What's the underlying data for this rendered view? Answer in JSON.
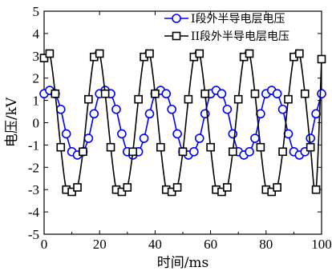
{
  "chart_data": {
    "type": "line",
    "xlabel": "时间/ms",
    "ylabel": "电压/kV",
    "xlim": [
      0,
      100
    ],
    "ylim": [
      -5,
      5
    ],
    "xticks": [
      0,
      20,
      40,
      60,
      80,
      100
    ],
    "yticks": [
      -5,
      -4,
      -3,
      -2,
      -1,
      0,
      1,
      2,
      3,
      4,
      5
    ],
    "grid": false,
    "legend_position": "top-right",
    "series": [
      {
        "name": "I段外半导电层电压",
        "color": "#0000ff",
        "marker": "circle",
        "x": [
          0,
          2,
          4,
          6,
          8,
          10,
          12,
          14,
          16,
          18,
          20,
          22,
          24,
          26,
          28,
          30,
          32,
          34,
          36,
          38,
          40,
          42,
          44,
          46,
          48,
          50,
          52,
          54,
          56,
          58,
          60,
          62,
          64,
          66,
          68,
          70,
          72,
          74,
          76,
          78,
          80,
          82,
          84,
          86,
          88,
          90,
          92,
          94,
          96,
          98,
          100
        ],
        "values": [
          1.3,
          1.45,
          1.3,
          0.6,
          -0.5,
          -1.3,
          -1.45,
          -1.3,
          -0.7,
          0.4,
          1.3,
          1.45,
          1.3,
          0.6,
          -0.5,
          -1.3,
          -1.45,
          -1.3,
          -0.7,
          0.4,
          1.3,
          1.45,
          1.3,
          0.6,
          -0.5,
          -1.3,
          -1.45,
          -1.3,
          -0.7,
          0.4,
          1.3,
          1.45,
          1.3,
          0.6,
          -0.5,
          -1.3,
          -1.45,
          -1.3,
          -0.7,
          0.4,
          1.3,
          1.45,
          1.3,
          0.6,
          -0.5,
          -1.3,
          -1.45,
          -1.3,
          -0.7,
          0.4,
          1.3
        ]
      },
      {
        "name": "II段外半导电层电压",
        "color": "#000000",
        "marker": "square",
        "x": [
          0,
          2,
          4,
          6,
          8,
          10,
          12,
          14,
          16,
          18,
          20,
          22,
          24,
          26,
          28,
          30,
          32,
          34,
          36,
          38,
          40,
          42,
          44,
          46,
          48,
          50,
          52,
          54,
          56,
          58,
          60,
          62,
          64,
          66,
          68,
          70,
          72,
          74,
          76,
          78,
          80,
          82,
          84,
          86,
          88,
          90,
          92,
          94,
          96,
          98,
          100
        ],
        "values": [
          2.9,
          3.1,
          1.3,
          -1.1,
          -3.0,
          -3.1,
          -2.9,
          -1.3,
          1.05,
          2.95,
          3.1,
          1.3,
          -1.1,
          -3.0,
          -3.1,
          -2.9,
          -1.3,
          1.05,
          2.95,
          3.1,
          1.3,
          -1.1,
          -3.0,
          -3.1,
          -2.9,
          -1.3,
          1.05,
          2.95,
          3.1,
          1.3,
          -1.1,
          -3.0,
          -3.1,
          -2.9,
          -1.3,
          1.05,
          2.95,
          3.1,
          1.3,
          -1.1,
          -3.0,
          -3.1,
          -2.9,
          -1.3,
          1.05,
          2.95,
          3.1,
          1.3,
          -1.1,
          -3.0,
          2.85
        ]
      }
    ]
  }
}
